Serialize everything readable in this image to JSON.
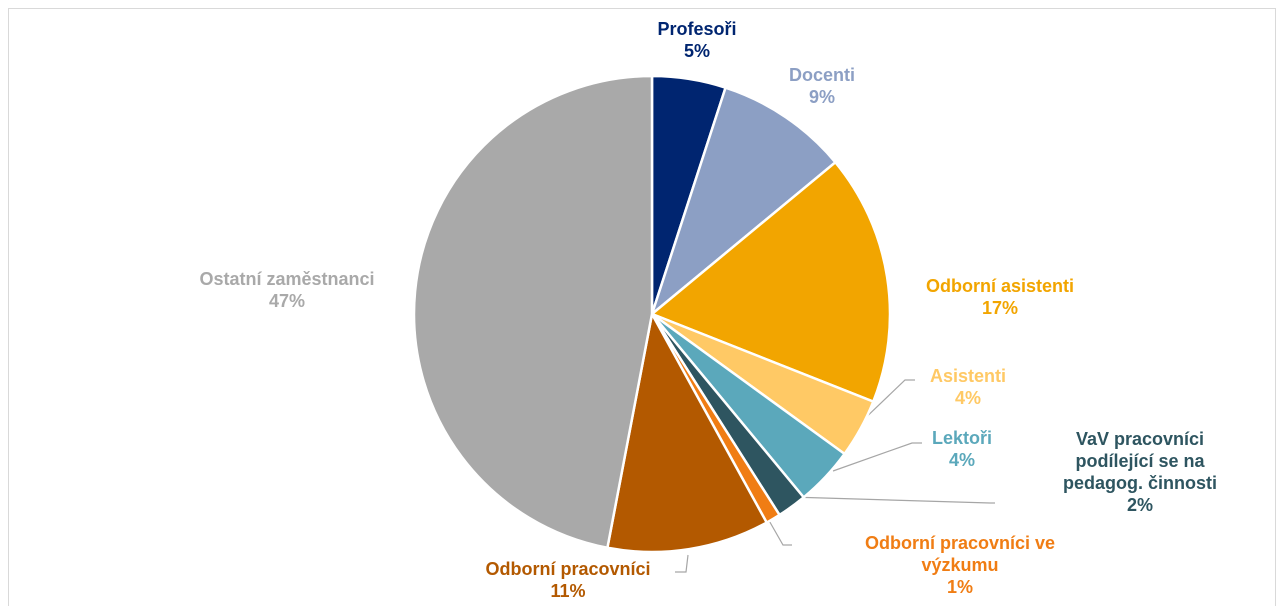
{
  "chart_data": {
    "type": "pie",
    "categories": [
      "Profesoři",
      "Docenti",
      "Odborní asistenti",
      "Asistenti",
      "Lektoři",
      "VaV pracovníci podílející se na pedagog. činnosti",
      "Odborní pracovníci ve výzkumu",
      "Odborní pracovníci",
      "Ostatní zaměstnanci"
    ],
    "values": [
      5,
      9,
      17,
      4,
      4,
      2,
      1,
      11,
      47
    ],
    "value_labels": [
      "5%",
      "9%",
      "17%",
      "4%",
      "4%",
      "2%",
      "1%",
      "11%",
      "47%"
    ],
    "colors": [
      "#002570",
      "#8c9fc4",
      "#f2a500",
      "#ffc965",
      "#5ba8bb",
      "#2e5560",
      "#f07d14",
      "#b35900",
      "#a9a9a9"
    ]
  }
}
